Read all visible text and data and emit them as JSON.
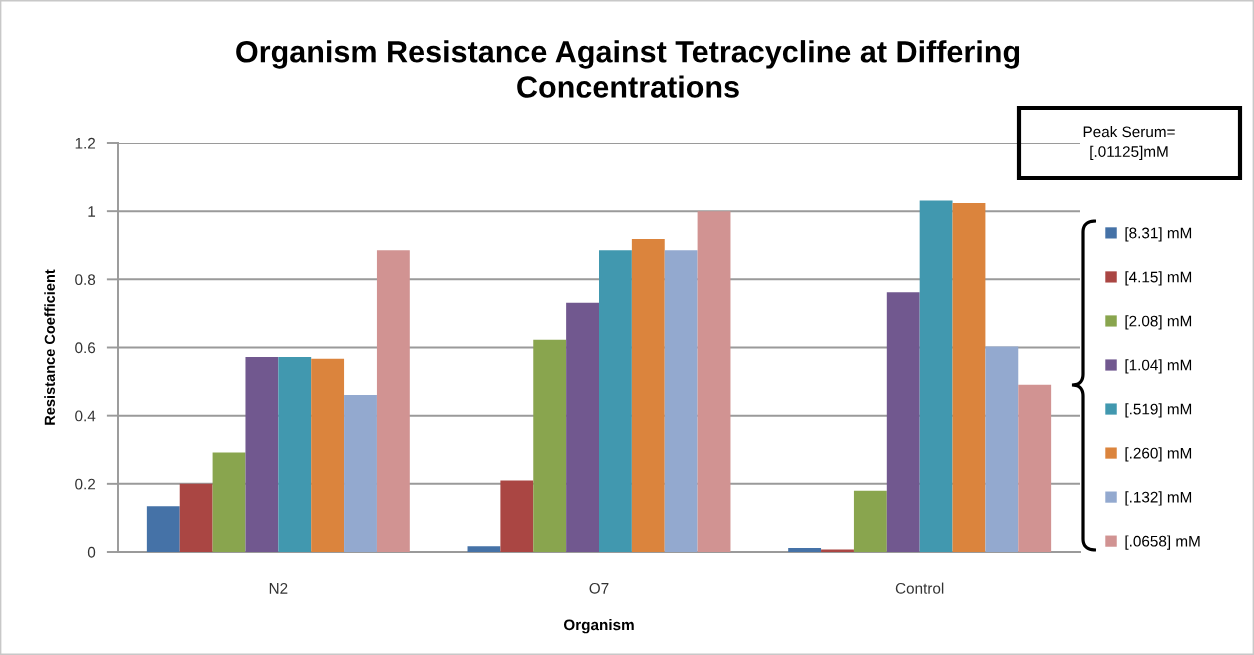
{
  "chart_data": {
    "type": "bar",
    "title": "Organism Resistance Against Tetracycline at Differing Concentrations",
    "xlabel": "Organism",
    "ylabel": "Resistance Coefficient",
    "categories": [
      "N2",
      "O7",
      "Control"
    ],
    "series": [
      {
        "name": "[8.31] mM",
        "color": "#4572a7",
        "values": [
          0.134,
          0.017,
          0.012
        ]
      },
      {
        "name": "[4.15] mM",
        "color": "#aa4643",
        "values": [
          0.2,
          0.21,
          0.007
        ]
      },
      {
        "name": "[2.08] mM",
        "color": "#89a54e",
        "values": [
          0.292,
          0.623,
          0.18
        ]
      },
      {
        "name": "[1.04] mM",
        "color": "#71588f",
        "values": [
          0.572,
          0.731,
          0.762
        ]
      },
      {
        "name": "[.519] mM",
        "color": "#4198af",
        "values": [
          0.572,
          0.885,
          1.031
        ]
      },
      {
        "name": "[.260] mM",
        "color": "#db843d",
        "values": [
          0.567,
          0.918,
          1.024
        ]
      },
      {
        "name": "[.132] mM",
        "color": "#93a9cf",
        "values": [
          0.461,
          0.885,
          0.603
        ]
      },
      {
        "name": "[.0658] mM",
        "color": "#d19392",
        "values": [
          0.885,
          1.0,
          0.491
        ]
      }
    ],
    "ylim": [
      0,
      1.2
    ],
    "yticks": [
      0,
      0.2,
      0.4,
      0.6,
      0.8,
      1,
      1.2
    ],
    "grid": "y",
    "legend": "right",
    "annotations": [
      "Peak Serum= [.01125]mM"
    ]
  }
}
